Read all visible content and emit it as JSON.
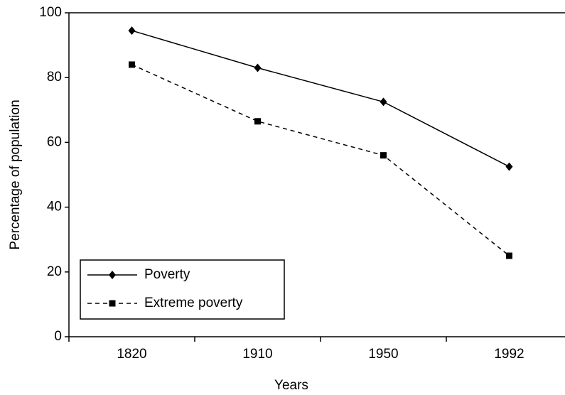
{
  "chart_data": {
    "type": "line",
    "xlabel": "Years",
    "ylabel": "Percentage of population",
    "categories": [
      "1820",
      "1910",
      "1950",
      "1992"
    ],
    "series": [
      {
        "name": "Poverty",
        "color": "#000000",
        "dash": "solid",
        "marker": "diamond",
        "values": [
          94.5,
          83,
          72.5,
          52.5
        ]
      },
      {
        "name": "Extreme poverty",
        "color": "#000000",
        "dash": "dashed",
        "marker": "square",
        "values": [
          84,
          66.5,
          56,
          25
        ]
      }
    ],
    "ylim": [
      0,
      100
    ],
    "yticks": [
      0,
      20,
      40,
      60,
      80,
      100
    ],
    "legend": "lower left"
  }
}
